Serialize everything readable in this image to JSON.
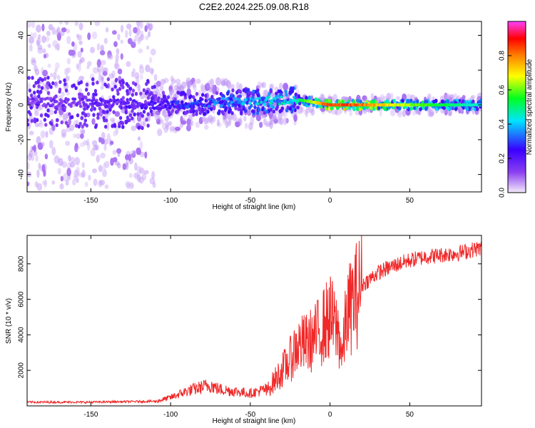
{
  "figure": {
    "title": "C2E2.2024.225.09.08.R18"
  },
  "chart_data": [
    {
      "type": "heatmap",
      "xlabel": "Height of straight line (km)",
      "ylabel": "Frequency (Hz)",
      "xlim": [
        -190,
        95
      ],
      "ylim": [
        -50,
        48
      ],
      "x_ticks": [
        -150,
        -100,
        -50,
        0,
        50
      ],
      "y_ticks": [
        -40,
        -20,
        0,
        20,
        40
      ],
      "colorbar": {
        "label": "Normalized spectral amplitude",
        "range": [
          0,
          1
        ],
        "ticks": [
          0.0,
          0.2,
          0.4,
          0.6,
          0.8
        ],
        "colors": [
          "#f4ecfb",
          "#8a3ff0",
          "#3a00ff",
          "#00e5ff",
          "#00ff20",
          "#ffff00",
          "#ff8000",
          "#ff0000",
          "#ff40ff"
        ]
      },
      "ridge": {
        "x": [
          -190,
          -110,
          -20,
          0,
          20,
          50,
          95
        ],
        "center_hz": [
          2,
          0,
          3,
          0,
          0,
          0,
          0
        ],
        "amplitude": [
          0.15,
          0.25,
          0.5,
          0.9,
          0.85,
          0.65,
          0.45
        ]
      }
    },
    {
      "type": "line",
      "xlabel": "Height of straight line (km)",
      "ylabel": "SNR (10 * v/v)",
      "xlim": [
        -190,
        95
      ],
      "ylim": [
        0,
        9600
      ],
      "x_ticks": [
        -150,
        -100,
        -50,
        0,
        50
      ],
      "y_ticks": [
        2000,
        4000,
        6000,
        8000
      ],
      "series": [
        {
          "color": "#f02828",
          "x": [
            -190,
            -150,
            -110,
            -100,
            -90,
            -80,
            -75,
            -70,
            -60,
            -50,
            -40,
            -35,
            -30,
            -25,
            -22,
            -20,
            -15,
            -10,
            -5,
            0,
            5,
            8,
            10,
            15,
            20,
            30,
            40,
            50,
            60,
            70,
            80,
            90,
            95
          ],
          "y": [
            150,
            150,
            200,
            400,
            700,
            900,
            1000,
            800,
            700,
            600,
            800,
            1400,
            2000,
            2600,
            3200,
            3400,
            3500,
            3800,
            4400,
            5000,
            4200,
            2800,
            5000,
            6000,
            6800,
            7500,
            7900,
            8200,
            8400,
            8500,
            8600,
            8800,
            8900
          ]
        }
      ]
    }
  ]
}
